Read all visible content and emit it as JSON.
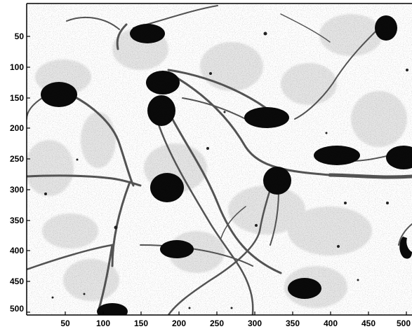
{
  "image": {
    "subject": "grayscale micrograph of cells with dark nuclei/somata and branching processes",
    "colors": {
      "background": "#ffffff",
      "ink": "#000000"
    }
  },
  "axes": {
    "x_ticks": [
      "50",
      "100",
      "150",
      "200",
      "250",
      "300",
      "350",
      "400",
      "450",
      "500"
    ],
    "y_ticks": [
      "50",
      "100",
      "150",
      "200",
      "250",
      "300",
      "350",
      "400",
      "450",
      "500"
    ]
  }
}
